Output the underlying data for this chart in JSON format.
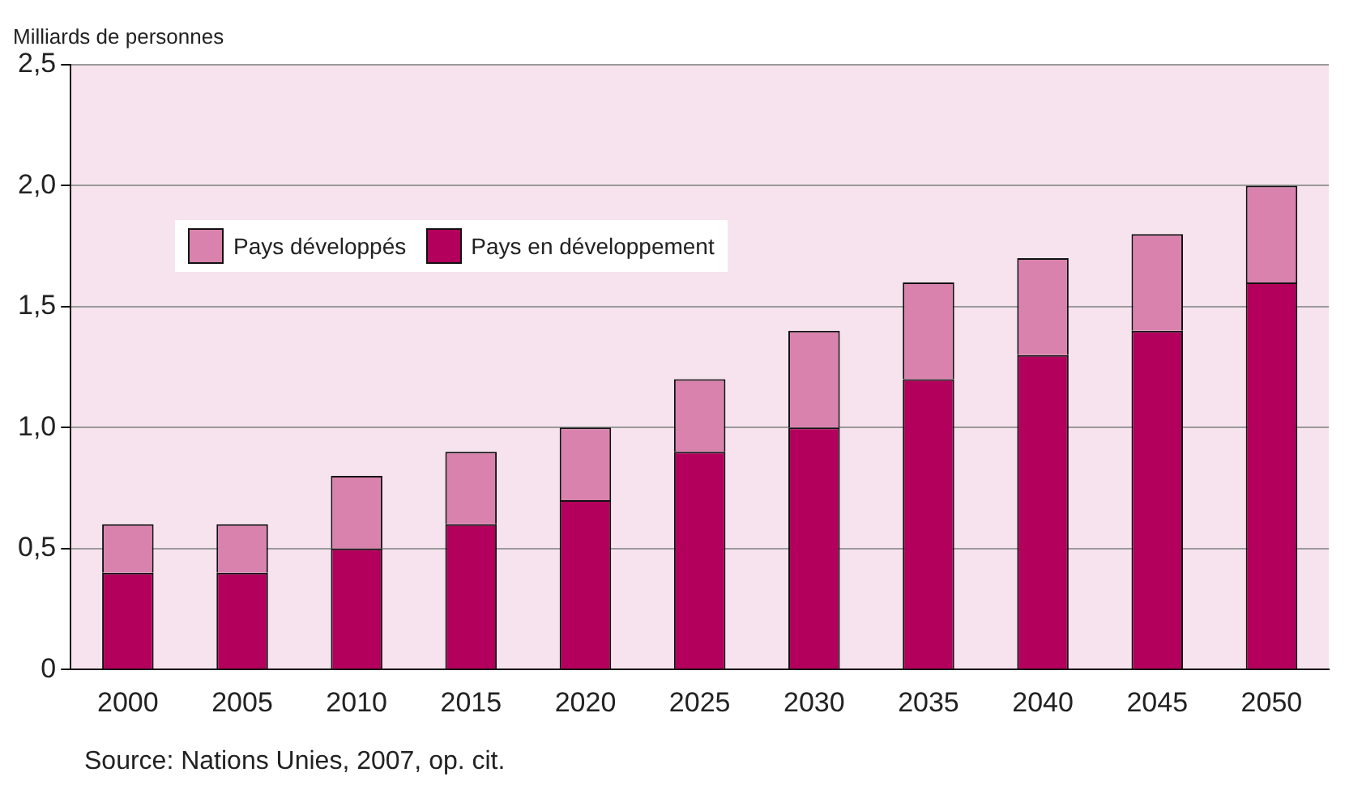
{
  "chart_data": {
    "type": "bar",
    "ylabel": "Milliards de personnes",
    "categories": [
      "2000",
      "2005",
      "2010",
      "2015",
      "2020",
      "2025",
      "2030",
      "2035",
      "2040",
      "2045",
      "2050"
    ],
    "series": [
      {
        "name": "Pays en développement",
        "color": "#b3005c",
        "values": [
          0.4,
          0.4,
          0.5,
          0.6,
          0.7,
          0.9,
          1.0,
          1.2,
          1.3,
          1.4,
          1.6
        ]
      },
      {
        "name": "Pays développés",
        "color": "#d982ad",
        "values": [
          0.2,
          0.2,
          0.3,
          0.3,
          0.3,
          0.3,
          0.4,
          0.4,
          0.4,
          0.4,
          0.4
        ]
      }
    ],
    "stacked": true,
    "ylim": [
      0,
      2.5
    ],
    "yticks": [
      0,
      {
        "value": 0.5,
        "label": "0,5"
      },
      {
        "value": 1,
        "label": "1,0"
      },
      {
        "value": 1.5,
        "label": "1,5"
      },
      {
        "value": 2,
        "label": "2,0"
      },
      {
        "value": 2.5,
        "label": "2,5"
      }
    ],
    "grid": "y",
    "legend": "top left",
    "annotations": [
      "Source: Nations Unies, 2007, op. cit."
    ]
  }
}
